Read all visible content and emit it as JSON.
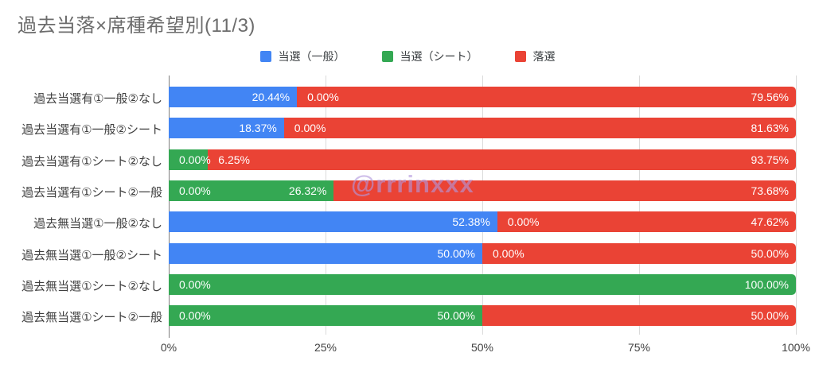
{
  "watermark": "@rrrinxxx",
  "chart_data": {
    "type": "bar",
    "orientation": "horizontal",
    "stacked": true,
    "title": "過去当落×席種希望別(11/3)",
    "xlabel": "",
    "ylabel": "",
    "xlim": [
      0,
      100
    ],
    "grid": true,
    "legend_position": "top",
    "categories": [
      "過去当選有①一般②なし",
      "過去当選有①一般②シート",
      "過去当選有①シート②なし",
      "過去当選有①シート②一般",
      "過去無当選①一般②なし",
      "過去無当選①一般②シート",
      "過去無当選①シート②なし",
      "過去無当選①シート②一般"
    ],
    "series": [
      {
        "name": "当選（一般）",
        "color": "#4285F4",
        "values": [
          20.44,
          18.37,
          0,
          0,
          52.38,
          50,
          0,
          0
        ]
      },
      {
        "name": "当選（シート）",
        "color": "#34A853",
        "values": [
          0,
          0,
          6.25,
          26.32,
          0,
          0,
          100,
          50
        ]
      },
      {
        "name": "落選",
        "color": "#EA4335",
        "values": [
          79.56,
          81.63,
          93.75,
          73.68,
          47.62,
          50,
          0,
          50
        ]
      }
    ],
    "x_ticks": [
      {
        "label": "0%",
        "value": 0
      },
      {
        "label": "25%",
        "value": 25
      },
      {
        "label": "50%",
        "value": 50
      },
      {
        "label": "75%",
        "value": 75
      },
      {
        "label": "100%",
        "value": 100
      }
    ],
    "value_labels": [
      [
        {
          "text": "20.44%",
          "align": "right",
          "at": 20.44
        },
        {
          "text": "0.00%",
          "align": "left",
          "at": 20.44
        },
        {
          "text": "79.56%",
          "align": "right",
          "at": 100
        }
      ],
      [
        {
          "text": "18.37%",
          "align": "right",
          "at": 18.37
        },
        {
          "text": "0.00%",
          "align": "left",
          "at": 18.37
        },
        {
          "text": "81.63%",
          "align": "right",
          "at": 100
        }
      ],
      [
        {
          "text": "0.00%",
          "align": "left",
          "at": 0
        },
        {
          "text": "6.25%",
          "align": "left",
          "at": 6.25
        },
        {
          "text": "93.75%",
          "align": "right",
          "at": 100
        }
      ],
      [
        {
          "text": "0.00%",
          "align": "left",
          "at": 0
        },
        {
          "text": "26.32%",
          "align": "right",
          "at": 26.32
        },
        {
          "text": "73.68%",
          "align": "right",
          "at": 100
        }
      ],
      [
        {
          "text": "52.38%",
          "align": "right",
          "at": 52.38
        },
        {
          "text": "0.00%",
          "align": "left",
          "at": 52.38
        },
        {
          "text": "47.62%",
          "align": "right",
          "at": 100
        }
      ],
      [
        {
          "text": "50.00%",
          "align": "right",
          "at": 50
        },
        {
          "text": "0.00%",
          "align": "left",
          "at": 50
        },
        {
          "text": "50.00%",
          "align": "right",
          "at": 100
        }
      ],
      [
        {
          "text": "0.00%",
          "align": "left",
          "at": 0
        },
        {
          "text": "100.00%",
          "align": "right",
          "at": 100
        }
      ],
      [
        {
          "text": "0.00%",
          "align": "left",
          "at": 0
        },
        {
          "text": "50.00%",
          "align": "right",
          "at": 50
        },
        {
          "text": "50.00%",
          "align": "right",
          "at": 100
        }
      ]
    ]
  }
}
